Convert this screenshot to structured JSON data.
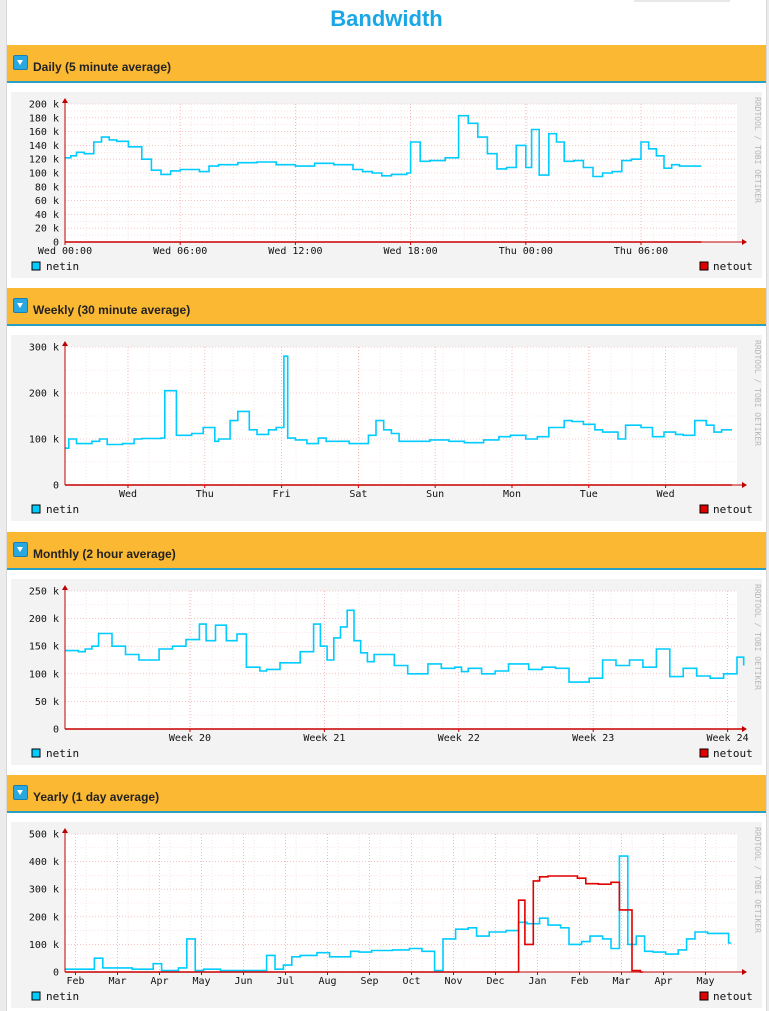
{
  "page": {
    "title": "Bandwidth"
  },
  "sections": [
    {
      "label": "Daily (5 minute average)"
    },
    {
      "label": "Weekly (30 minute average)"
    },
    {
      "label": "Monthly (2 hour average)"
    },
    {
      "label": "Yearly (1 day average)"
    }
  ],
  "watermark": "RRDTOOL / TOBI OETIKER",
  "colors": {
    "netin": "#00ccff",
    "netout": "#e00000",
    "header": "#fbb832",
    "title": "#1ba7e6"
  },
  "chart_data": [
    {
      "type": "line",
      "y_ticks": [
        "0",
        "20 k",
        "40 k",
        "60 k",
        "80 k",
        "100 k",
        "120 k",
        "140 k",
        "160 k",
        "180 k",
        "200 k"
      ],
      "ylim": [
        0,
        200000
      ],
      "x_tick_labels": [
        "Wed 00:00",
        "Wed 06:00",
        "Wed 12:00",
        "Wed 18:00",
        "Thu 00:00",
        "Thu 06:00"
      ],
      "x_tick_positions": [
        0,
        6,
        12,
        18,
        24,
        30
      ],
      "xlim": [
        0,
        35
      ],
      "grid": true,
      "legend": [
        "netin",
        "netout"
      ],
      "series": [
        {
          "name": "netin",
          "x": [
            0,
            0.3,
            0.6,
            1,
            1.5,
            1.9,
            2.3,
            2.7,
            3.3,
            4,
            4.5,
            5,
            5.5,
            6,
            7,
            7.5,
            8,
            9,
            10,
            11,
            12,
            13,
            14,
            15,
            15.5,
            16,
            16.5,
            17,
            17.8,
            18,
            18.5,
            19,
            19.8,
            20.5,
            21,
            21.5,
            22,
            22.5,
            23,
            23.5,
            24,
            24.3,
            24.7,
            25.2,
            25.6,
            26,
            26.5,
            27,
            27.5,
            28,
            28.5,
            29,
            29.5,
            30,
            30.4,
            30.8,
            31.2,
            31.6,
            32,
            32.5,
            33
          ],
          "y": [
            122000,
            125000,
            130000,
            128000,
            145000,
            152000,
            148000,
            146000,
            138000,
            120000,
            104000,
            98000,
            103000,
            105000,
            102000,
            110000,
            112000,
            115000,
            116000,
            112000,
            110000,
            114000,
            112000,
            105000,
            102000,
            100000,
            96000,
            98000,
            100000,
            145000,
            117000,
            118000,
            122000,
            183000,
            172000,
            152000,
            128000,
            106000,
            108000,
            140000,
            108000,
            163000,
            97000,
            157000,
            145000,
            117000,
            118000,
            108000,
            95000,
            100000,
            102000,
            118000,
            120000,
            145000,
            135000,
            125000,
            107000,
            112000,
            110000,
            110000,
            110000
          ]
        },
        {
          "name": "netout",
          "x": [
            0,
            33
          ],
          "y": [
            0,
            0
          ]
        }
      ]
    },
    {
      "type": "line",
      "y_ticks": [
        "0",
        "100 k",
        "200 k",
        "300 k"
      ],
      "ylim": [
        0,
        300000
      ],
      "x_tick_labels": [
        "Wed",
        "Thu",
        "Fri",
        "Sat",
        "Sun",
        "Mon",
        "Tue",
        "Wed"
      ],
      "x_tick_positions": [
        0.82,
        1.82,
        2.82,
        3.82,
        4.82,
        5.82,
        6.82,
        7.82
      ],
      "xlim": [
        0,
        8.75
      ],
      "grid": true,
      "legend": [
        "netin",
        "netout"
      ],
      "series": [
        {
          "name": "netin",
          "x": [
            0,
            0.05,
            0.15,
            0.35,
            0.45,
            0.55,
            0.75,
            0.9,
            1.0,
            1.25,
            1.3,
            1.45,
            1.65,
            1.8,
            1.95,
            2.0,
            2.15,
            2.25,
            2.4,
            2.5,
            2.65,
            2.75,
            2.85,
            2.9,
            3.0,
            3.15,
            3.3,
            3.4,
            3.5,
            3.7,
            3.95,
            4.05,
            4.15,
            4.25,
            4.35,
            4.5,
            4.75,
            5.0,
            5.2,
            5.45,
            5.65,
            5.8,
            6.0,
            6.15,
            6.3,
            6.5,
            6.6,
            6.75,
            6.9,
            7.0,
            7.2,
            7.3,
            7.5,
            7.65,
            7.8,
            7.95,
            8.05,
            8.2,
            8.35,
            8.45,
            8.55,
            8.65
          ],
          "y": [
            80000,
            100000,
            90000,
            95000,
            100000,
            88000,
            90000,
            100000,
            101000,
            102000,
            205000,
            108000,
            112000,
            125000,
            95000,
            100000,
            140000,
            160000,
            120000,
            110000,
            120000,
            125000,
            280000,
            102000,
            98000,
            90000,
            102000,
            95000,
            95000,
            90000,
            108000,
            140000,
            120000,
            112000,
            95000,
            95000,
            98000,
            95000,
            92000,
            98000,
            105000,
            108000,
            100000,
            105000,
            125000,
            140000,
            138000,
            132000,
            120000,
            115000,
            100000,
            130000,
            125000,
            105000,
            115000,
            110000,
            108000,
            140000,
            130000,
            115000,
            120000,
            120000
          ]
        },
        {
          "name": "netout",
          "x": [
            0,
            8.65
          ],
          "y": [
            0,
            0
          ]
        }
      ]
    },
    {
      "type": "line",
      "y_ticks": [
        "0",
        "50 k",
        "100 k",
        "150 k",
        "200 k",
        "250 k"
      ],
      "ylim": [
        0,
        250000
      ],
      "x_tick_labels": [
        "Week 20",
        "Week 21",
        "Week 22",
        "Week 23",
        "Week 24"
      ],
      "x_tick_positions": [
        19.93,
        20.93,
        21.93,
        22.93,
        23.93
      ],
      "xlim": [
        19,
        24
      ],
      "grid": true,
      "legend": [
        "netin",
        "netout"
      ],
      "series": [
        {
          "name": "netin",
          "x": [
            19,
            19.1,
            19.15,
            19.2,
            19.25,
            19.35,
            19.45,
            19.55,
            19.7,
            19.8,
            19.9,
            20.0,
            20.05,
            20.12,
            20.2,
            20.28,
            20.35,
            20.45,
            20.5,
            20.6,
            20.75,
            20.85,
            20.9,
            20.95,
            21.0,
            21.05,
            21.1,
            21.15,
            21.2,
            21.25,
            21.3,
            21.45,
            21.55,
            21.7,
            21.8,
            21.9,
            21.95,
            22.0,
            22.1,
            22.2,
            22.3,
            22.45,
            22.55,
            22.65,
            22.75,
            22.9,
            23.0,
            23.1,
            23.2,
            23.3,
            23.4,
            23.5,
            23.6,
            23.7,
            23.8,
            23.9,
            24.0,
            24.05
          ],
          "y": [
            142000,
            140000,
            145000,
            150000,
            173000,
            150000,
            135000,
            125000,
            145000,
            150000,
            162000,
            190000,
            160000,
            188000,
            160000,
            172000,
            112000,
            105000,
            108000,
            120000,
            140000,
            190000,
            150000,
            125000,
            165000,
            185000,
            215000,
            160000,
            138000,
            122000,
            135000,
            115000,
            100000,
            118000,
            110000,
            112000,
            104000,
            110000,
            100000,
            105000,
            118000,
            108000,
            112000,
            110000,
            85000,
            92000,
            125000,
            115000,
            125000,
            112000,
            145000,
            95000,
            110000,
            96000,
            92000,
            100000,
            130000,
            115000
          ]
        },
        {
          "name": "netout",
          "x": [
            19,
            24.05
          ],
          "y": [
            0,
            0
          ]
        }
      ]
    },
    {
      "type": "line",
      "y_ticks": [
        "0",
        "100 k",
        "200 k",
        "300 k",
        "400 k",
        "500 k"
      ],
      "ylim": [
        0,
        500000
      ],
      "x_tick_labels": [
        "Feb",
        "Mar",
        "Apr",
        "May",
        "Jun",
        "Jul",
        "Aug",
        "Sep",
        "Oct",
        "Nov",
        "Dec",
        "Jan",
        "Feb",
        "Mar",
        "Apr",
        "May"
      ],
      "x_tick_positions": [
        0.25,
        1.25,
        2.25,
        3.25,
        4.25,
        5.25,
        6.25,
        7.25,
        8.25,
        9.25,
        10.25,
        11.25,
        12.25,
        13.25,
        14.25,
        15.25
      ],
      "xlim": [
        0,
        16
      ],
      "grid": true,
      "legend": [
        "netin",
        "netout"
      ],
      "series": [
        {
          "name": "netin",
          "x": [
            0,
            0.7,
            0.9,
            1.1,
            1.6,
            2.1,
            2.3,
            2.5,
            2.7,
            2.9,
            3.1,
            3.3,
            3.7,
            4.1,
            4.6,
            4.8,
            5.0,
            5.2,
            5.4,
            5.6,
            6.0,
            6.3,
            6.8,
            7.0,
            7.3,
            7.8,
            8.2,
            8.5,
            8.8,
            9.0,
            9.3,
            9.6,
            9.8,
            10.1,
            10.5,
            10.8,
            11.0,
            11.3,
            11.5,
            11.8,
            12.0,
            12.3,
            12.5,
            12.8,
            13.0,
            13.2,
            13.4,
            13.6,
            13.8,
            14.0,
            14.3,
            14.6,
            14.8,
            15.0,
            15.3,
            15.6,
            15.8
          ],
          "y": [
            10000,
            50000,
            15000,
            15000,
            10000,
            30000,
            5000,
            5000,
            15000,
            120000,
            5000,
            10000,
            5000,
            5000,
            5000,
            60000,
            10000,
            25000,
            55000,
            60000,
            70000,
            55000,
            75000,
            72000,
            78000,
            80000,
            85000,
            75000,
            5000,
            120000,
            155000,
            160000,
            130000,
            145000,
            150000,
            180000,
            175000,
            195000,
            170000,
            160000,
            100000,
            110000,
            130000,
            120000,
            85000,
            420000,
            100000,
            130000,
            75000,
            72000,
            65000,
            80000,
            120000,
            145000,
            140000,
            140000,
            105000
          ]
        },
        {
          "name": "netout",
          "x": [
            0,
            10.8,
            10.95,
            11.15,
            11.3,
            11.5,
            12.0,
            12.2,
            12.4,
            12.7,
            13.0,
            13.2,
            13.5,
            13.7
          ],
          "y": [
            0,
            260000,
            100000,
            330000,
            345000,
            348000,
            348000,
            340000,
            320000,
            318000,
            325000,
            225000,
            5000,
            0
          ]
        }
      ]
    }
  ]
}
